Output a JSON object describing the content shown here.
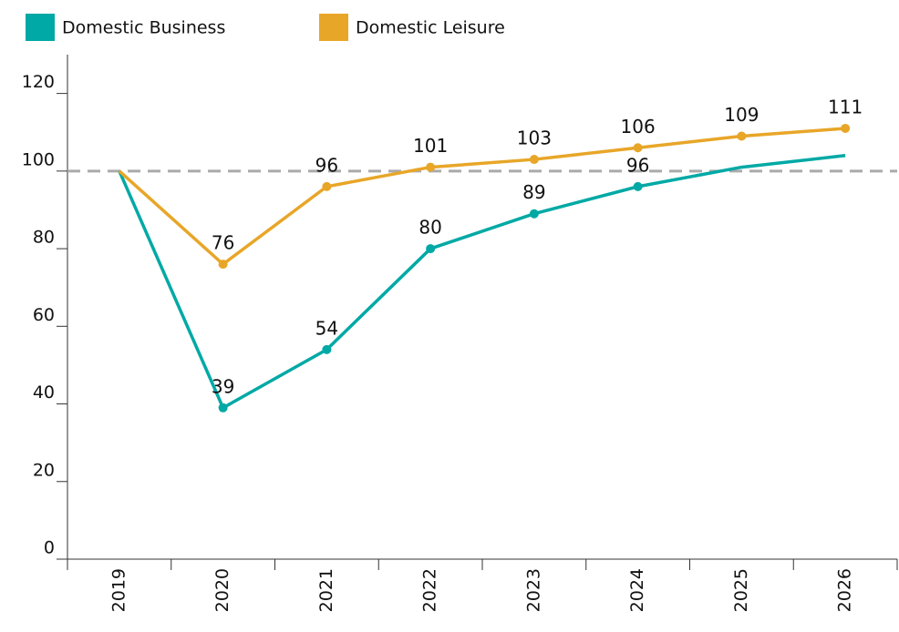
{
  "chart_data": {
    "type": "line",
    "categories": [
      "2019",
      "2020",
      "2021",
      "2022",
      "2023",
      "2024",
      "2025",
      "2026"
    ],
    "series": [
      {
        "name": "Domestic Business",
        "color": "#00a9a5",
        "values": [
          100,
          39,
          54,
          80,
          89,
          96,
          101,
          104
        ],
        "value_labels": [
          null,
          "39",
          "54",
          "80",
          "89",
          "96",
          null,
          null
        ]
      },
      {
        "name": "Domestic Leisure",
        "color": "#e8a628",
        "values": [
          100,
          76,
          96,
          101,
          103,
          106,
          109,
          111
        ],
        "value_labels": [
          null,
          "76",
          "96",
          "101",
          "103",
          "106",
          "109",
          "111"
        ]
      }
    ],
    "reference_line": 100,
    "ylim": [
      0,
      130
    ],
    "yticks": [
      0,
      20,
      40,
      60,
      80,
      100,
      120
    ],
    "legend": "top-left"
  }
}
